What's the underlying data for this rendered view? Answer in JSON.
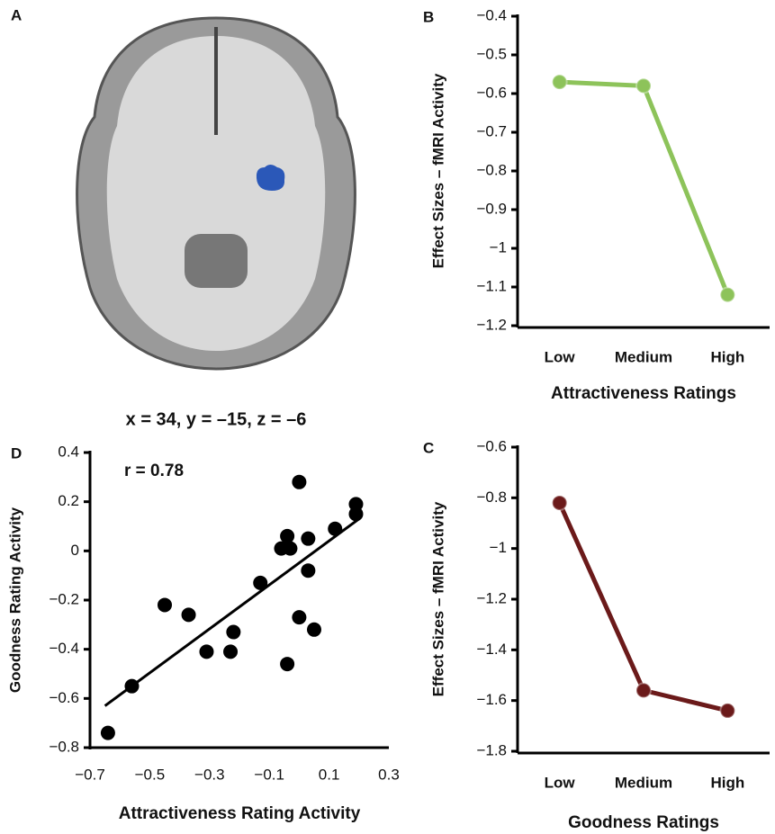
{
  "panel_a": {
    "label": "A",
    "caption": "x = 34, y = –15, z = –6"
  },
  "chart_data": [
    {
      "type": "line",
      "panel": "B",
      "y_label": "Effect Sizes – fMRI Activity",
      "x_label": "Attractiveness Ratings",
      "categories": [
        "Low",
        "Medium",
        "High"
      ],
      "color": "#8dc35a",
      "values": [
        -0.57,
        -0.58,
        -1.12
      ],
      "ylim": [
        -1.2,
        -0.4
      ],
      "yticks": [
        {
          "value": -0.4,
          "label": "−0.4"
        },
        {
          "value": -0.5,
          "label": "−0.5"
        },
        {
          "value": -0.6,
          "label": "−0.6"
        },
        {
          "value": -0.7,
          "label": "−0.7"
        },
        {
          "value": -0.8,
          "label": "−0.8"
        },
        {
          "value": -0.9,
          "label": "−0.9"
        },
        {
          "value": -1,
          "label": "−1"
        },
        {
          "value": -1.1,
          "label": "−1.1"
        },
        {
          "value": -1.2,
          "label": "−1.2"
        }
      ]
    },
    {
      "type": "line",
      "panel": "C",
      "y_label": "Effect Sizes – fMRI Activity",
      "x_label": "Goodness Ratings",
      "categories": [
        "Low",
        "Medium",
        "High"
      ],
      "color": "#6b1a1a",
      "values": [
        -0.82,
        -1.56,
        -1.64
      ],
      "ylim": [
        -1.8,
        -0.6
      ],
      "yticks": [
        {
          "value": -0.6,
          "label": "−0.6"
        },
        {
          "value": -0.8,
          "label": "−0.8"
        },
        {
          "value": -1,
          "label": "−1"
        },
        {
          "value": -1.2,
          "label": "−1.2"
        },
        {
          "value": -1.4,
          "label": "−1.4"
        },
        {
          "value": -1.6,
          "label": "−1.6"
        },
        {
          "value": -1.8,
          "label": "−1.8"
        }
      ]
    },
    {
      "type": "scatter",
      "panel": "D",
      "y_label": "Goodness Rating Activity",
      "x_label": "Attractiveness Rating Activity",
      "annotation": "r = 0.78",
      "color": "#000000",
      "x": [
        -0.64,
        -0.56,
        -0.45,
        -0.37,
        -0.31,
        -0.23,
        -0.22,
        -0.13,
        -0.06,
        -0.04,
        -0.03,
        -0.04,
        0.0,
        0.0,
        0.03,
        0.03,
        0.05,
        0.12,
        0.19,
        0.19
      ],
      "y": [
        -0.74,
        -0.55,
        -0.22,
        -0.26,
        -0.41,
        -0.41,
        -0.33,
        -0.13,
        0.01,
        0.06,
        0.01,
        -0.46,
        0.28,
        -0.27,
        0.05,
        -0.08,
        -0.32,
        0.09,
        0.19,
        0.15
      ],
      "trend_line": {
        "x": [
          -0.65,
          0.2
        ],
        "y": [
          -0.63,
          0.13
        ]
      },
      "xlim": [
        -0.7,
        0.3
      ],
      "xticks": [
        {
          "value": -0.7,
          "label": "−0.7"
        },
        {
          "value": -0.5,
          "label": "−0.5"
        },
        {
          "value": -0.3,
          "label": "−0.3"
        },
        {
          "value": -0.1,
          "label": "−0.1"
        },
        0.1,
        0.3
      ],
      "ylim": [
        -0.8,
        0.4
      ],
      "yticks": [
        0.4,
        0.2,
        0,
        {
          "value": -0.2,
          "label": "−0.2"
        },
        {
          "value": -0.4,
          "label": "−0.4"
        },
        {
          "value": -0.6,
          "label": "−0.6"
        },
        {
          "value": -0.8,
          "label": "−0.8"
        }
      ]
    }
  ]
}
